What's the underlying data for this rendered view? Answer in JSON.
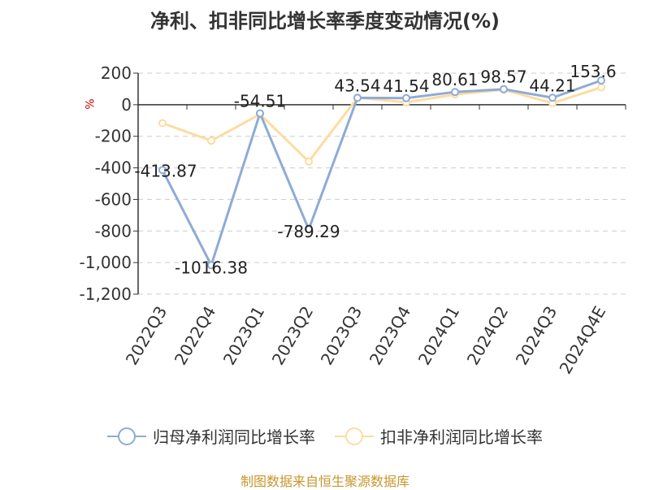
{
  "title": "净利、扣非同比增长率季度变动情况(%)",
  "source": "制图数据来自恒生聚源数据库",
  "colors": {
    "series1": "#8eabd6",
    "series2": "#fddca1",
    "grid": "#cccccc",
    "axis": "#333333",
    "unit": "#cc0000",
    "source": "#c8962e"
  },
  "chart_data": {
    "type": "line",
    "title": "净利、扣非同比增长率季度变动情况(%)",
    "ylabel": "%",
    "categories": [
      "2022Q3",
      "2022Q4",
      "2023Q1",
      "2023Q2",
      "2023Q3",
      "2023Q4",
      "2024Q1",
      "2024Q2",
      "2024Q3",
      "2024Q4E"
    ],
    "ylim": [
      -1200,
      200
    ],
    "yticks": [
      200,
      0,
      -200,
      -400,
      -600,
      -800,
      -1000,
      -1200
    ],
    "ytick_labels": [
      "200",
      "0",
      "-200",
      "-400",
      "-600",
      "-800",
      "-1,000",
      "-1,200"
    ],
    "grid": true,
    "legend_position": "bottom",
    "series": [
      {
        "name": "归母净利润同比增长率",
        "color": "#8eabd6",
        "values": [
          -413.87,
          -1016.38,
          -54.51,
          -789.29,
          43.54,
          41.54,
          80.61,
          98.57,
          44.21,
          153.6
        ],
        "labels": [
          "-413.87",
          "-1016.38",
          "-54.51",
          "-789.29",
          "43.54",
          "41.54",
          "80.61",
          "98.57",
          "44.21",
          "153.6"
        ]
      },
      {
        "name": "扣非净利润同比增长率",
        "color": "#fddca1",
        "values": [
          -117,
          -228,
          -60,
          -360,
          45,
          15,
          65,
          95,
          10,
          110
        ]
      }
    ]
  }
}
